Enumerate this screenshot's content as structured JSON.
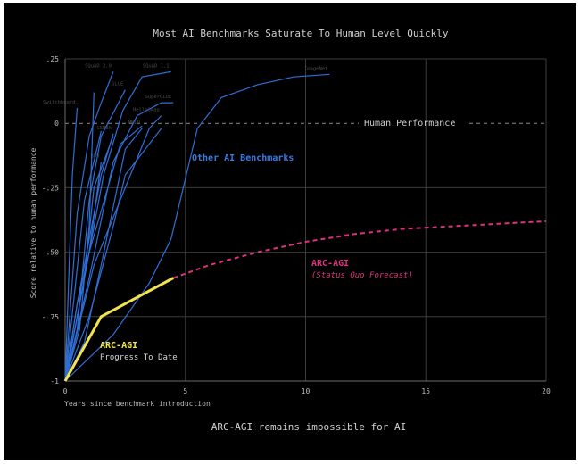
{
  "chart_data": {
    "type": "line",
    "title": "Most AI Benchmarks Saturate To Human Level Quickly",
    "subtitle": "ARC-AGI remains impossible for AI",
    "xlabel": "Years since benchmark introduction",
    "ylabel": "Score relative to human performance",
    "xlim": [
      0,
      20
    ],
    "ylim": [
      -1,
      0.25
    ],
    "xticks": [
      0,
      5,
      10,
      15,
      20
    ],
    "xtick_labels": [
      "0",
      "5",
      "10",
      "15",
      "20"
    ],
    "yticks": [
      0.25,
      0,
      -0.25,
      -0.5,
      -0.75,
      -1
    ],
    "ytick_labels": [
      ".25",
      "0",
      "-.25",
      "-.50",
      "-.75",
      "-1"
    ],
    "grid": true,
    "colors": {
      "background": "#000000",
      "grid": "#3c3c3c",
      "benchmarks": "#2f6fd6",
      "benchmark_labels": "#4a4a4a",
      "arc_progress": "#f3e34f",
      "arc_forecast": "#e0307f",
      "text": "#cfcfcf",
      "accent_text": "#3b7be0"
    },
    "human_line": {
      "y": 0,
      "label": "Human Performance"
    },
    "series": [
      {
        "name": "ImageNet",
        "x": [
          0,
          2,
          3.5,
          4.4,
          5.5,
          6.5,
          8,
          9.5,
          11
        ],
        "y": [
          -1,
          -0.82,
          -0.62,
          -0.45,
          -0.02,
          0.1,
          0.15,
          0.18,
          0.19
        ]
      },
      {
        "name": "SQuAD 2.0",
        "x": [
          0,
          0.5,
          1,
          1.5,
          2
        ],
        "y": [
          -1,
          -0.35,
          -0.05,
          0.08,
          0.2
        ]
      },
      {
        "name": "SQuAD 1.1",
        "x": [
          0,
          0.8,
          1.6,
          2.4,
          3.2,
          4.4
        ],
        "y": [
          -1,
          -0.6,
          -0.2,
          0.05,
          0.18,
          0.2
        ]
      },
      {
        "name": "Switchboard",
        "x": [
          0,
          0.3,
          0.5
        ],
        "y": [
          -1,
          -0.2,
          0.06
        ]
      },
      {
        "name": "GLUE",
        "x": [
          0,
          0.5,
          1,
          1.5,
          2.5
        ],
        "y": [
          -1,
          -0.8,
          -0.3,
          -0.05,
          0.13
        ]
      },
      {
        "name": "SuperGLUE",
        "x": [
          0,
          1,
          2,
          3,
          4,
          4.5
        ],
        "y": [
          -1,
          -0.6,
          -0.15,
          0.03,
          0.08,
          0.08
        ]
      },
      {
        "name": "HellaSwag",
        "x": [
          0,
          1.2,
          2.5,
          3.5,
          4
        ],
        "y": [
          -1,
          -0.55,
          -0.25,
          -0.02,
          0.03
        ]
      },
      {
        "name": "MMLU",
        "x": [
          0,
          0.8,
          1.5,
          2.5,
          3.2
        ],
        "y": [
          -1,
          -0.85,
          -0.55,
          -0.1,
          -0.02
        ]
      },
      {
        "name": "GSM8k",
        "x": [
          0,
          0.5,
          1,
          1.5,
          2
        ],
        "y": [
          -1,
          -0.7,
          -0.45,
          -0.2,
          -0.04
        ]
      },
      {
        "name": "BBH",
        "x": [
          0,
          0.5,
          1,
          1.5
        ],
        "y": [
          -1,
          -0.75,
          -0.5,
          -0.15
        ]
      },
      {
        "name": "",
        "x": [
          0,
          1,
          2,
          2.5,
          4
        ],
        "y": [
          -1,
          -0.75,
          -0.4,
          -0.2,
          -0.02
        ]
      },
      {
        "name": "",
        "x": [
          0,
          0.8,
          1.2,
          2
        ],
        "y": [
          -1,
          -0.6,
          -0.25,
          -0.05
        ]
      },
      {
        "name": "",
        "x": [
          0,
          0.4,
          0.8,
          1.5
        ],
        "y": [
          -1,
          -0.65,
          -0.3,
          -0.03
        ]
      },
      {
        "name": "",
        "x": [
          0,
          0.6,
          1,
          1.2
        ],
        "y": [
          -1,
          -0.8,
          -0.4,
          0.12
        ]
      },
      {
        "name": "",
        "x": [
          0,
          0.5,
          1,
          2.3,
          3.2
        ],
        "y": [
          -1,
          -0.7,
          -0.5,
          -0.08,
          -0.01
        ]
      }
    ],
    "arc_progress": {
      "name": "ARC-AGI",
      "x": [
        0,
        1.5,
        4.5
      ],
      "y": [
        -1,
        -0.75,
        -0.6
      ]
    },
    "arc_forecast": {
      "name": "ARC-AGI",
      "x": [
        4.5,
        6,
        8,
        10,
        12,
        14,
        16,
        18,
        20
      ],
      "y": [
        -0.6,
        -0.55,
        -0.5,
        -0.46,
        -0.43,
        -0.41,
        -0.4,
        -0.39,
        -0.38
      ]
    },
    "annotations": {
      "other_benchmarks": "Other AI Benchmarks",
      "arc_forecast_label": "ARC-AGI",
      "arc_forecast_sublabel": "(Status Quo Forecast)",
      "arc_progress_label": "ARC-AGI",
      "arc_progress_sublabel": "Progress To Date"
    }
  }
}
